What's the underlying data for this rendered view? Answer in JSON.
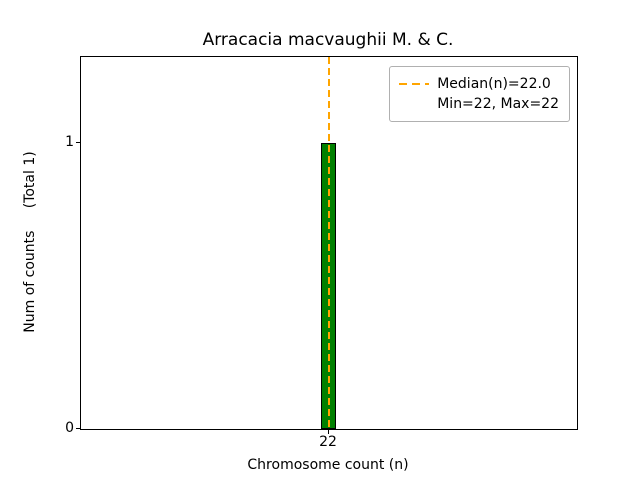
{
  "chart_data": {
    "type": "bar",
    "title": "Arracacia macvaughii M. & C.",
    "xlabel": "Chromosome count (n)",
    "ylabel": "Num of counts     (Total 1)",
    "categories": [
      "22"
    ],
    "values": [
      1
    ],
    "total_counts": 1,
    "xtick_labels": [
      "22"
    ],
    "yticks": [
      0,
      1
    ],
    "ytick_labels": [
      "0",
      "1"
    ],
    "ylim": [
      0,
      1.3
    ],
    "grid": false,
    "bar_color": "#008000",
    "bar_edge_color": "#000000",
    "median": {
      "value": 22.0,
      "line_color": "#FFA500",
      "line_style": "dashed"
    },
    "min": 22,
    "max": 22,
    "legend": {
      "position": "upper right",
      "entries": [
        {
          "handle": "dashed-orange-line",
          "color": "#FFA500",
          "label": "Median(n)=22.0"
        },
        {
          "handle": "none",
          "label": "Min=22, Max=22"
        }
      ]
    }
  }
}
